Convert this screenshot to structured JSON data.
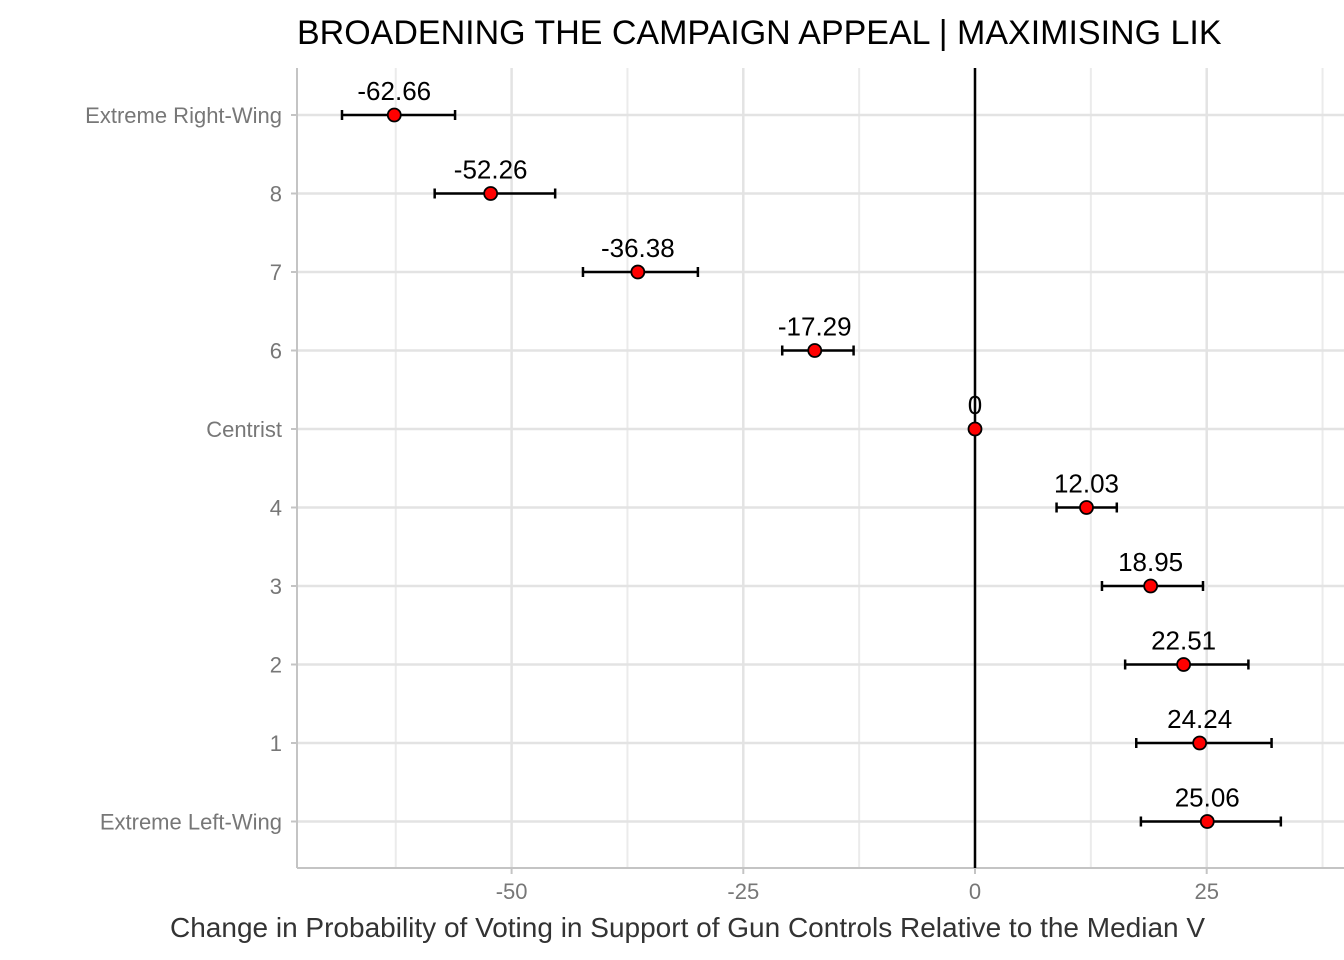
{
  "chart_data": {
    "type": "scatter",
    "title": "BROADENING THE CAMPAIGN APPEAL | MAXIMISING LIK",
    "xlabel": "Change in Probability of Voting in Support of Gun Controls Relative to the Median V",
    "ylabel": "",
    "xlim": [
      -73.5,
      38
    ],
    "x_ticks": [
      -50,
      -25,
      0,
      25
    ],
    "x_tick_labels": [
      "-50",
      "-25",
      "0",
      "25"
    ],
    "reference_line_x": 0,
    "grid": true,
    "categories": [
      "Extreme Right-Wing",
      "8",
      "7",
      "6",
      "Centrist",
      "4",
      "3",
      "2",
      "1",
      "Extreme Left-Wing"
    ],
    "series": [
      {
        "values": [
          -62.66,
          -52.26,
          -36.38,
          -17.29,
          0,
          12.03,
          18.95,
          22.51,
          24.24,
          25.06
        ],
        "labels": [
          "-62.66",
          "-52.26",
          "-36.38",
          "-17.29",
          "0",
          "12.03",
          "18.95",
          "22.51",
          "24.24",
          "25.06"
        ],
        "ci_low": [
          -68.3,
          -58.3,
          -42.3,
          -20.8,
          0,
          8.8,
          13.7,
          16.2,
          17.4,
          17.9
        ],
        "ci_high": [
          -56.1,
          -45.3,
          -29.9,
          -13.1,
          0,
          15.3,
          24.6,
          29.5,
          32.0,
          33.0
        ],
        "point_color": "#ff0000",
        "edge_color": "#000000"
      }
    ]
  }
}
